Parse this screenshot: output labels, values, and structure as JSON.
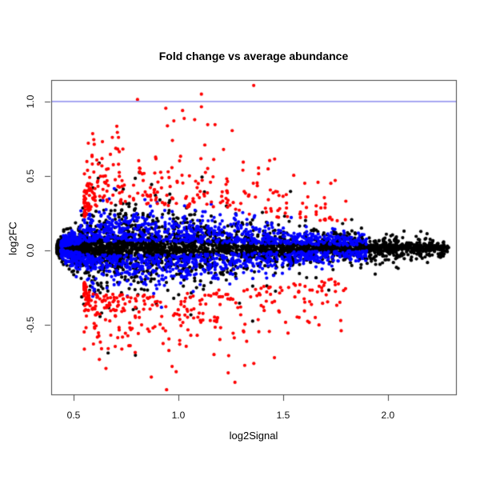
{
  "figure": {
    "background": "#ffffff"
  },
  "chart_data": {
    "type": "scatter",
    "title": "Fold change vs average abundance",
    "xlabel": "log2Signal",
    "ylabel": "log2FC",
    "xlim": [
      0.393,
      2.325
    ],
    "ylim": [
      -0.968,
      1.145
    ],
    "x_ticks": [
      "0.5",
      "1.0",
      "1.5",
      "2.0"
    ],
    "x_tick_values": [
      0.5,
      1.0,
      1.5,
      2.0
    ],
    "y_ticks": [
      "-0.5",
      "0.0",
      "0.5",
      "1.0"
    ],
    "y_tick_values": [
      -0.5,
      0.0,
      0.5,
      1.0
    ],
    "grid": false,
    "legend_position": "none",
    "axis_color": "#454545",
    "label_color": "#000000",
    "hline": {
      "y": 1.0,
      "color": "#9a9af0",
      "width": 1.8
    },
    "point_radius": 2.1,
    "seed": 20,
    "series": [
      {
        "name": "black-points",
        "color": "#000000",
        "count": 3600,
        "x": {
          "min": 0.42,
          "range": 1.87,
          "pow": 1.7
        },
        "y": {
          "kind": "normal-mix",
          "center": 0.015,
          "sigmas": [
            0.05,
            0.12,
            0.22
          ],
          "weights": [
            0.45,
            0.38,
            0.17
          ]
        },
        "taper": {
          "rise0": 0.4,
          "riseW": 0.2,
          "decayX0": 0.95,
          "decay": 1.05
        }
      },
      {
        "name": "blue-points",
        "color": "#0000ff",
        "count": 1700,
        "x": {
          "min": 0.44,
          "range": 1.46,
          "pow": 1.45
        },
        "y": {
          "kind": "band",
          "center": 0.015,
          "base": 0.045,
          "sigma": 0.105,
          "up_frac": 0.52
        },
        "taper": {
          "rise0": 0.4,
          "riseW": 0.2,
          "decayX0": 0.95,
          "decay": 1.05
        }
      },
      {
        "name": "red-points",
        "color": "#ff0000",
        "count": 640,
        "x": {
          "min": 0.55,
          "range": 1.25,
          "pow": 2.0
        },
        "y": {
          "kind": "outlier",
          "center": 0.0,
          "base": 0.295,
          "exp_scale": 0.17,
          "up_frac": 0.45
        },
        "taper": {
          "rise0": 0.42,
          "riseW": 0.18,
          "decayX0": 0.95,
          "decay": 0.55
        }
      }
    ],
    "highlight_points": [
      {
        "x": 1.11,
        "y": 1.05,
        "color": "#ff0000"
      },
      {
        "x": 1.11,
        "y": 0.965,
        "color": "#ff0000"
      },
      {
        "x": 0.94,
        "y": 0.955,
        "color": "#ff0000"
      },
      {
        "x": 1.02,
        "y": 0.94,
        "color": "#ff0000"
      },
      {
        "x": 1.14,
        "y": 0.845,
        "color": "#ff0000"
      },
      {
        "x": 1.175,
        "y": 0.845,
        "color": "#ff0000"
      },
      {
        "x": 1.27,
        "y": -0.887,
        "color": "#ff0000"
      },
      {
        "x": 1.36,
        "y": -0.76,
        "color": "#ff0000"
      },
      {
        "x": 0.97,
        "y": -0.78,
        "color": "#ff0000"
      },
      {
        "x": 1.17,
        "y": -0.7,
        "color": "#ff0000"
      }
    ]
  }
}
